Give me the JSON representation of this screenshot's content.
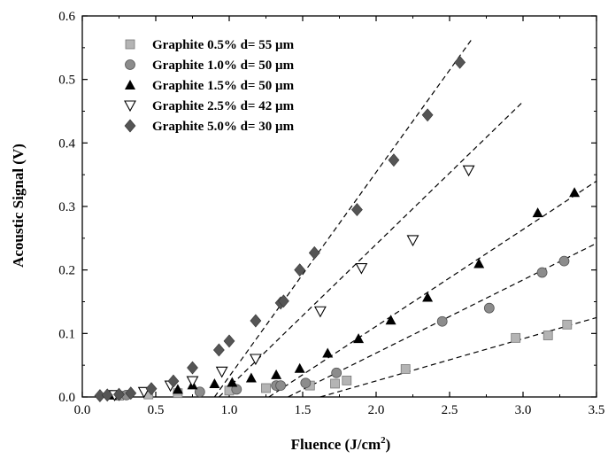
{
  "chart_data": {
    "type": "scatter",
    "xlabel": "Fluence (J/cm",
    "xlabel_sup": "2",
    "xlabel_close": ")",
    "ylabel": "Acoustic Signal (V)",
    "xlim": [
      0.0,
      3.5
    ],
    "ylim": [
      0.0,
      0.6
    ],
    "xticks": [
      "0.0",
      "0.5",
      "1.0",
      "1.5",
      "2.0",
      "2.5",
      "3.0",
      "3.5"
    ],
    "yticks": [
      "0.0",
      "0.1",
      "0.2",
      "0.3",
      "0.4",
      "0.5",
      "0.6"
    ],
    "grid": false,
    "legend_position": "top-left",
    "series": [
      {
        "name": "Graphite 0.5%  d= 55 µm",
        "marker": "square",
        "color": "#b4b4b4",
        "points": [
          [
            0.25,
            0.002
          ],
          [
            0.45,
            0.004
          ],
          [
            0.65,
            0.006
          ],
          [
            1.0,
            0.01
          ],
          [
            1.25,
            0.014
          ],
          [
            1.55,
            0.018
          ],
          [
            1.72,
            0.021
          ],
          [
            1.8,
            0.026
          ],
          [
            2.2,
            0.044
          ],
          [
            2.95,
            0.093
          ],
          [
            3.17,
            0.097
          ],
          [
            3.3,
            0.114
          ]
        ],
        "fit": [
          [
            1.62,
            0.0
          ],
          [
            3.5,
            0.125
          ]
        ]
      },
      {
        "name": "Graphite 1.0%  d= 50 µm",
        "marker": "circle",
        "color": "#8c8c8c",
        "points": [
          [
            0.3,
            0.003
          ],
          [
            0.8,
            0.008
          ],
          [
            1.05,
            0.012
          ],
          [
            1.32,
            0.018
          ],
          [
            1.35,
            0.018
          ],
          [
            1.52,
            0.022
          ],
          [
            1.73,
            0.038
          ],
          [
            2.45,
            0.119
          ],
          [
            2.77,
            0.14
          ],
          [
            3.13,
            0.196
          ],
          [
            3.28,
            0.214
          ]
        ],
        "fit": [
          [
            1.4,
            0.0
          ],
          [
            3.5,
            0.242
          ]
        ]
      },
      {
        "name": "Graphite 1.5%  d= 50 µm",
        "marker": "triangle",
        "color": "#000000",
        "points": [
          [
            0.2,
            0.003
          ],
          [
            0.65,
            0.012
          ],
          [
            0.75,
            0.019
          ],
          [
            0.9,
            0.021
          ],
          [
            1.02,
            0.023
          ],
          [
            1.15,
            0.03
          ],
          [
            1.32,
            0.035
          ],
          [
            1.48,
            0.045
          ],
          [
            1.67,
            0.069
          ],
          [
            1.88,
            0.092
          ],
          [
            2.1,
            0.121
          ],
          [
            2.35,
            0.157
          ],
          [
            2.7,
            0.21
          ],
          [
            3.1,
            0.29
          ],
          [
            3.35,
            0.322
          ]
        ],
        "fit": [
          [
            1.27,
            0.0
          ],
          [
            3.5,
            0.34
          ]
        ]
      },
      {
        "name": "Graphite 2.5%  d= 42 µm",
        "marker": "triangle-down",
        "color": "#000000",
        "points": [
          [
            0.22,
            0.003
          ],
          [
            0.42,
            0.008
          ],
          [
            0.6,
            0.018
          ],
          [
            0.75,
            0.025
          ],
          [
            0.95,
            0.04
          ],
          [
            1.18,
            0.06
          ],
          [
            1.62,
            0.135
          ],
          [
            1.9,
            0.203
          ],
          [
            2.25,
            0.247
          ],
          [
            2.63,
            0.357
          ]
        ],
        "fit": [
          [
            0.93,
            0.0
          ],
          [
            3.0,
            0.465
          ]
        ]
      },
      {
        "name": "Graphite 5.0%  d= 30 µm",
        "marker": "diamond",
        "color": "#555555",
        "points": [
          [
            0.12,
            0.002
          ],
          [
            0.17,
            0.003
          ],
          [
            0.25,
            0.004
          ],
          [
            0.33,
            0.006
          ],
          [
            0.47,
            0.013
          ],
          [
            0.62,
            0.025
          ],
          [
            0.75,
            0.046
          ],
          [
            0.93,
            0.074
          ],
          [
            1.0,
            0.088
          ],
          [
            1.18,
            0.12
          ],
          [
            1.35,
            0.148
          ],
          [
            1.37,
            0.151
          ],
          [
            1.48,
            0.2
          ],
          [
            1.58,
            0.227
          ],
          [
            1.87,
            0.295
          ],
          [
            2.12,
            0.373
          ],
          [
            2.35,
            0.444
          ],
          [
            2.57,
            0.527
          ]
        ],
        "fit": [
          [
            0.9,
            0.0
          ],
          [
            2.65,
            0.563
          ]
        ]
      }
    ]
  }
}
